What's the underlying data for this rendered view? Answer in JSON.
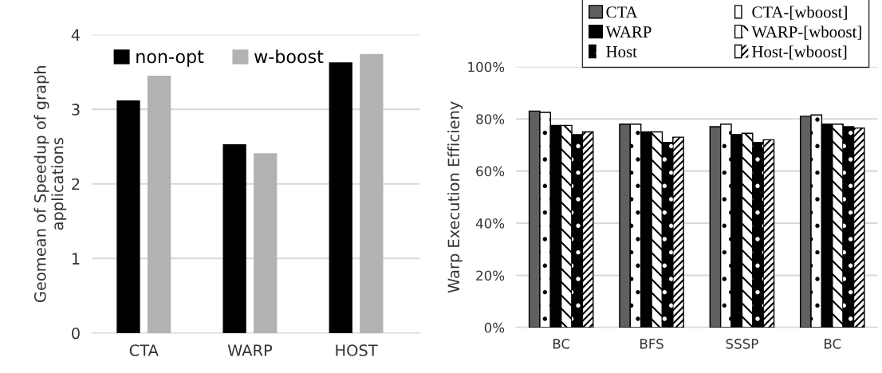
{
  "chart_data": [
    {
      "type": "bar",
      "ylabel": "Geomean of Speedup of graph\napplications",
      "categories": [
        "CTA",
        "WARP",
        "HOST"
      ],
      "series": [
        {
          "name": "non-opt",
          "color": "#000000",
          "values": [
            3.12,
            2.53,
            3.63
          ]
        },
        {
          "name": "w-boost",
          "color": "#b2b2b2",
          "values": [
            3.45,
            2.41,
            3.74
          ]
        }
      ],
      "ylim": [
        0,
        4
      ],
      "yticks": [
        0,
        1,
        2,
        3,
        4
      ],
      "grid": "y",
      "legend": "top left"
    },
    {
      "type": "bar",
      "ylabel": "Warp Execution Efficieny",
      "categories": [
        "BC",
        "BFS",
        "SSSP",
        "BC"
      ],
      "series": [
        {
          "name": "CTA",
          "color": "#606060",
          "values": [
            83,
            78,
            77,
            81
          ]
        },
        {
          "name": "CTA-[wboost]",
          "color": "#ffffff",
          "values": [
            82.5,
            78,
            78,
            81.5
          ]
        },
        {
          "name": "WARP",
          "color": "#000000",
          "values": [
            77.5,
            75,
            74,
            78
          ]
        },
        {
          "name": "WARP-[wboost]",
          "color": "#ffffff",
          "values": [
            77.5,
            75,
            74.5,
            78
          ]
        },
        {
          "name": "Host",
          "color": "#000000",
          "values": [
            74,
            71,
            71,
            77
          ]
        },
        {
          "name": "Host-[wboost]",
          "color": "#ffffff",
          "values": [
            75,
            73,
            72,
            76.5
          ]
        }
      ],
      "ylim": [
        0,
        100
      ],
      "yticks": [
        {
          "value": 0,
          "label": "0%"
        },
        {
          "value": 20,
          "label": "20%"
        },
        {
          "value": 40,
          "label": "40%"
        },
        {
          "value": 60,
          "label": "60%"
        },
        {
          "value": 80,
          "label": "80%"
        },
        {
          "value": 100,
          "label": "100%"
        }
      ],
      "grid": "y",
      "legend": "top"
    }
  ]
}
